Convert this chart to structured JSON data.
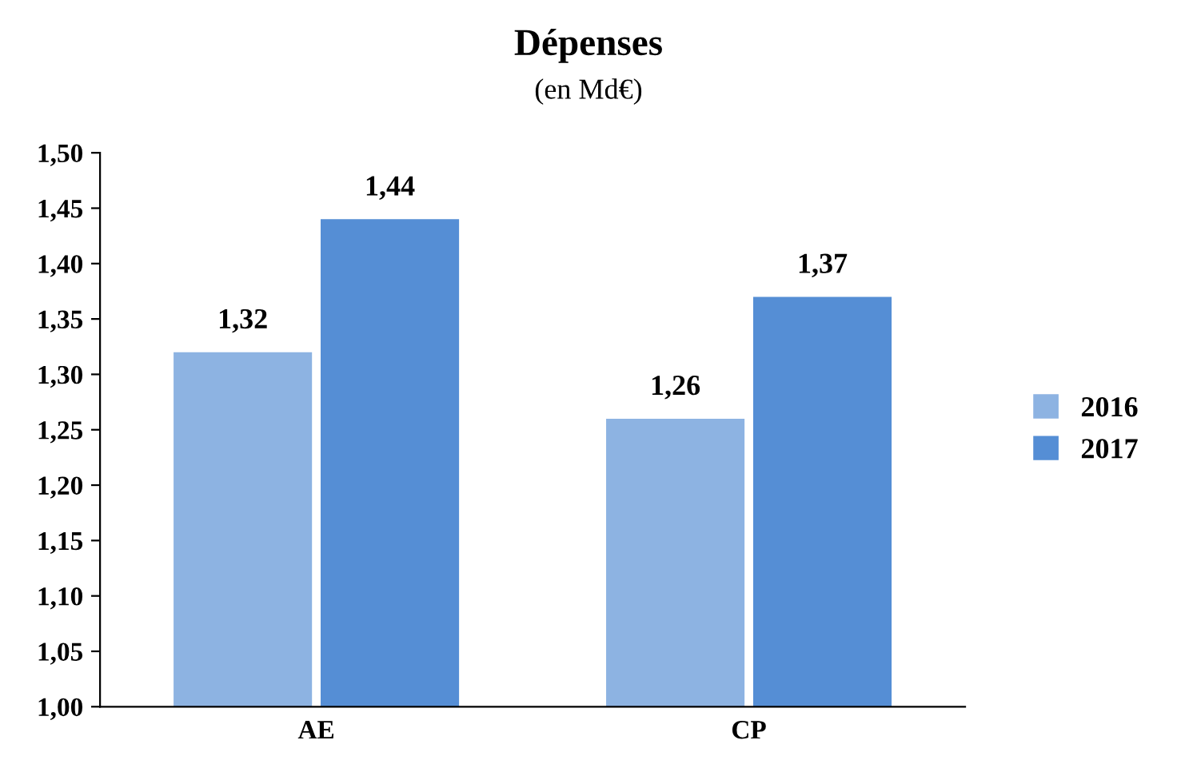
{
  "chart_data": {
    "type": "bar",
    "title": "Dépenses",
    "subtitle": "(en Md€)",
    "categories": [
      "AE",
      "CP"
    ],
    "series": [
      {
        "name": "2016",
        "color": "#8db3e2",
        "values": [
          1.32,
          1.26
        ],
        "value_labels": [
          "1,32",
          "1,26"
        ]
      },
      {
        "name": "2017",
        "color": "#558ed5",
        "values": [
          1.44,
          1.37
        ],
        "value_labels": [
          "1,44",
          "1,37"
        ]
      }
    ],
    "ylim": [
      1.0,
      1.5
    ],
    "yticks": [
      {
        "value": 1.0,
        "label": "1,00"
      },
      {
        "value": 1.05,
        "label": "1,05"
      },
      {
        "value": 1.1,
        "label": "1,10"
      },
      {
        "value": 1.15,
        "label": "1,15"
      },
      {
        "value": 1.2,
        "label": "1,20"
      },
      {
        "value": 1.25,
        "label": "1,25"
      },
      {
        "value": 1.3,
        "label": "1,30"
      },
      {
        "value": 1.35,
        "label": "1,35"
      },
      {
        "value": 1.4,
        "label": "1,40"
      },
      {
        "value": 1.45,
        "label": "1,45"
      },
      {
        "value": 1.5,
        "label": "1,50"
      }
    ],
    "grid": false,
    "legend": "right"
  }
}
